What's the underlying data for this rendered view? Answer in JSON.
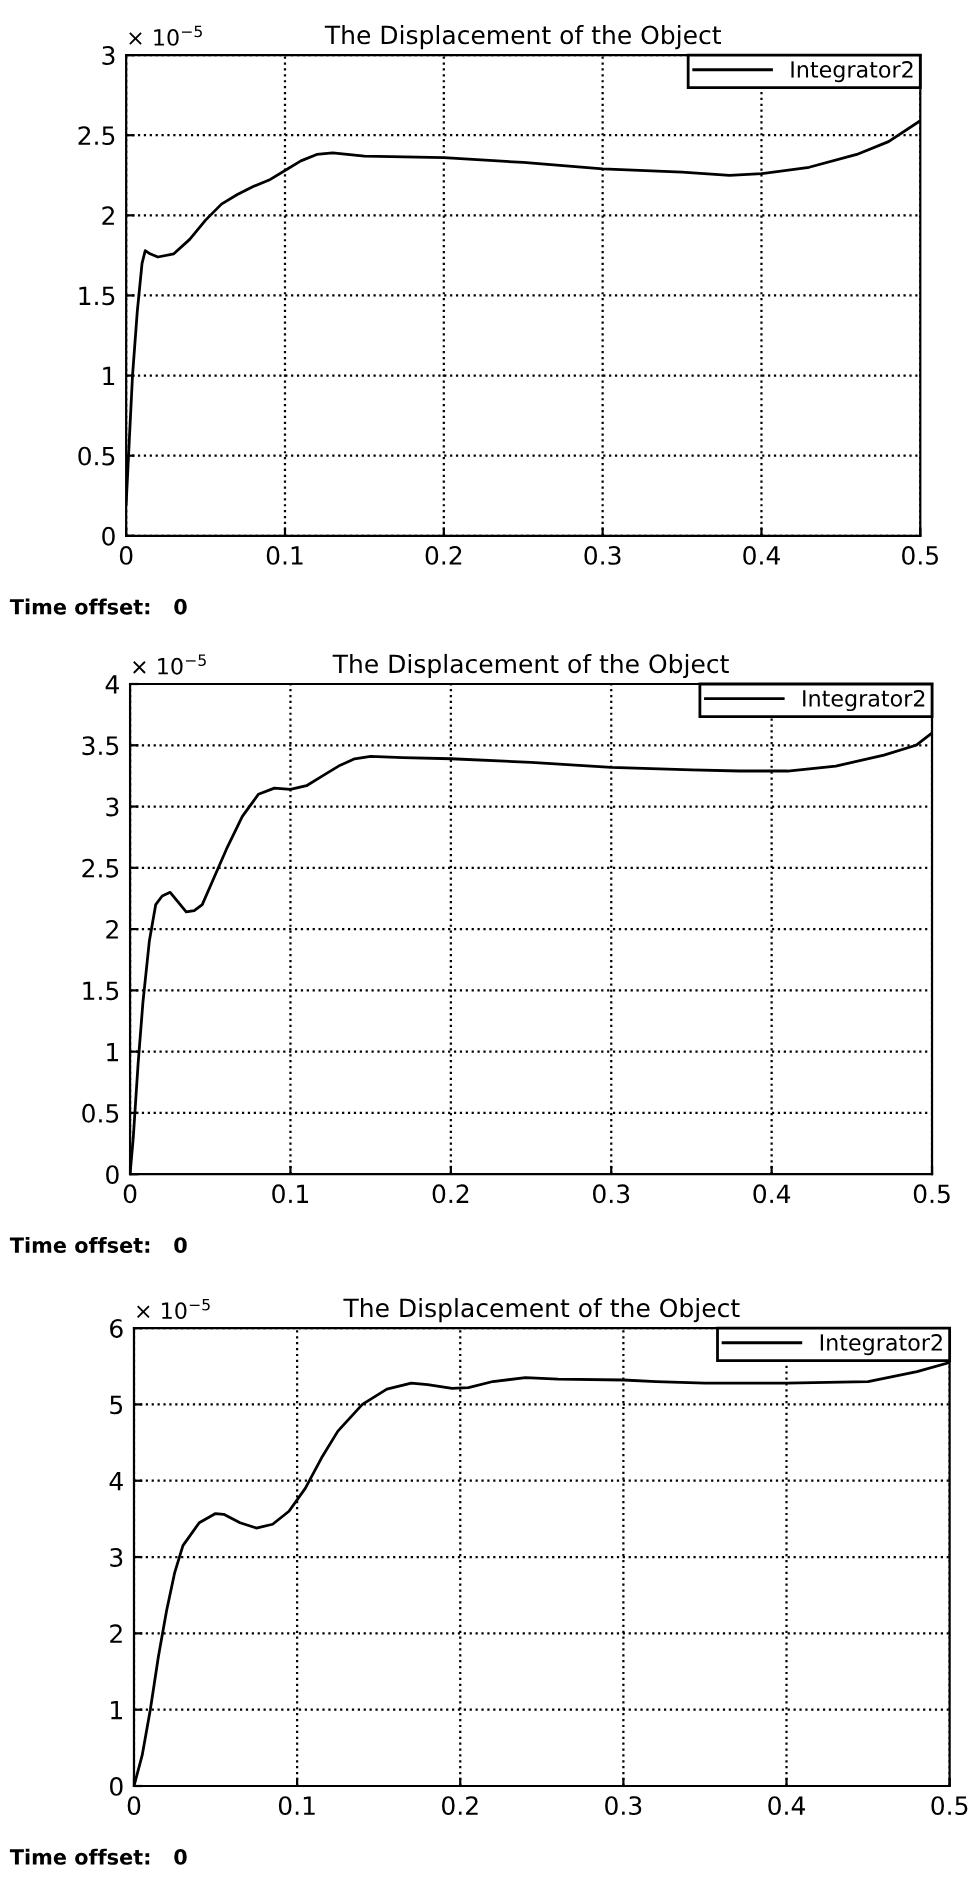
{
  "chart_data": [
    {
      "type": "line",
      "title": "The Displacement of the Object",
      "legend": "top right",
      "grid": true,
      "marker": "none",
      "line_style": "solid",
      "xlim": [
        0,
        0.5
      ],
      "xticks": [
        0,
        0.1,
        0.2,
        0.3,
        0.4,
        0.5
      ],
      "ylim": [
        0,
        3
      ],
      "yticks": [
        0,
        0.5,
        1,
        1.5,
        2,
        2.5,
        3
      ],
      "annotations": [
        "× 10$^{−5}$",
        "Time offset:   0"
      ],
      "series": [
        {
          "name": "Integrator2",
          "color": "#000000",
          "x": [
            0,
            0.002,
            0.004,
            0.007,
            0.01,
            0.012,
            0.015,
            0.02,
            0.03,
            0.04,
            0.05,
            0.06,
            0.07,
            0.08,
            0.09,
            0.1,
            0.11,
            0.12,
            0.13,
            0.15,
            0.2,
            0.25,
            0.3,
            0.35,
            0.38,
            0.4,
            0.43,
            0.46,
            0.48,
            0.5
          ],
          "values": [
            0.2,
            0.6,
            1.0,
            1.4,
            1.7,
            1.78,
            1.76,
            1.74,
            1.76,
            1.85,
            1.97,
            2.07,
            2.13,
            2.18,
            2.22,
            2.28,
            2.34,
            2.38,
            2.39,
            2.37,
            2.36,
            2.33,
            2.29,
            2.27,
            2.25,
            2.26,
            2.3,
            2.38,
            2.46,
            2.59
          ]
        }
      ]
    },
    {
      "type": "line",
      "title": "The Displacement of the Object",
      "legend": "top right",
      "grid": true,
      "marker": "none",
      "line_style": "solid",
      "xlim": [
        0,
        0.5
      ],
      "xticks": [
        0,
        0.1,
        0.2,
        0.3,
        0.4,
        0.5
      ],
      "ylim": [
        0,
        4
      ],
      "yticks": [
        0,
        0.5,
        1,
        1.5,
        2,
        2.5,
        3,
        3.5,
        4
      ],
      "annotations": [
        "× 10$^{−5}$",
        "Time offset:   0"
      ],
      "series": [
        {
          "name": "Integrator2",
          "color": "#000000",
          "x": [
            0,
            0.002,
            0.005,
            0.008,
            0.012,
            0.016,
            0.02,
            0.025,
            0.03,
            0.035,
            0.04,
            0.045,
            0.05,
            0.06,
            0.07,
            0.08,
            0.09,
            0.1,
            0.11,
            0.12,
            0.13,
            0.14,
            0.15,
            0.17,
            0.2,
            0.25,
            0.3,
            0.35,
            0.38,
            0.41,
            0.44,
            0.47,
            0.49,
            0.5
          ],
          "values": [
            0,
            0.3,
            0.9,
            1.4,
            1.9,
            2.2,
            2.27,
            2.3,
            2.22,
            2.14,
            2.15,
            2.2,
            2.35,
            2.65,
            2.92,
            3.1,
            3.15,
            3.14,
            3.17,
            3.25,
            3.33,
            3.39,
            3.41,
            3.4,
            3.39,
            3.36,
            3.32,
            3.3,
            3.29,
            3.29,
            3.33,
            3.42,
            3.5,
            3.6
          ]
        }
      ]
    },
    {
      "type": "line",
      "title": "The Displacement of the Object",
      "legend": "top right",
      "grid": true,
      "marker": "none",
      "line_style": "solid",
      "xlim": [
        0,
        0.5
      ],
      "xticks": [
        0,
        0.1,
        0.2,
        0.3,
        0.4,
        0.5
      ],
      "ylim": [
        0,
        6
      ],
      "yticks": [
        0,
        1,
        2,
        3,
        4,
        5,
        6
      ],
      "annotations": [
        "× 10$^{−5}$",
        "Time offset:   0"
      ],
      "series": [
        {
          "name": "Integrator2",
          "color": "#000000",
          "x": [
            0,
            0.005,
            0.01,
            0.015,
            0.02,
            0.025,
            0.03,
            0.04,
            0.05,
            0.055,
            0.065,
            0.075,
            0.085,
            0.095,
            0.105,
            0.115,
            0.125,
            0.14,
            0.155,
            0.17,
            0.18,
            0.195,
            0.205,
            0.22,
            0.24,
            0.26,
            0.3,
            0.32,
            0.35,
            0.4,
            0.45,
            0.48,
            0.5
          ],
          "values": [
            0,
            0.4,
            1.0,
            1.7,
            2.3,
            2.8,
            3.15,
            3.45,
            3.57,
            3.56,
            3.45,
            3.38,
            3.43,
            3.6,
            3.9,
            4.3,
            4.65,
            5.0,
            5.2,
            5.28,
            5.26,
            5.21,
            5.22,
            5.3,
            5.35,
            5.33,
            5.32,
            5.3,
            5.28,
            5.28,
            5.3,
            5.43,
            5.55
          ]
        }
      ]
    }
  ]
}
